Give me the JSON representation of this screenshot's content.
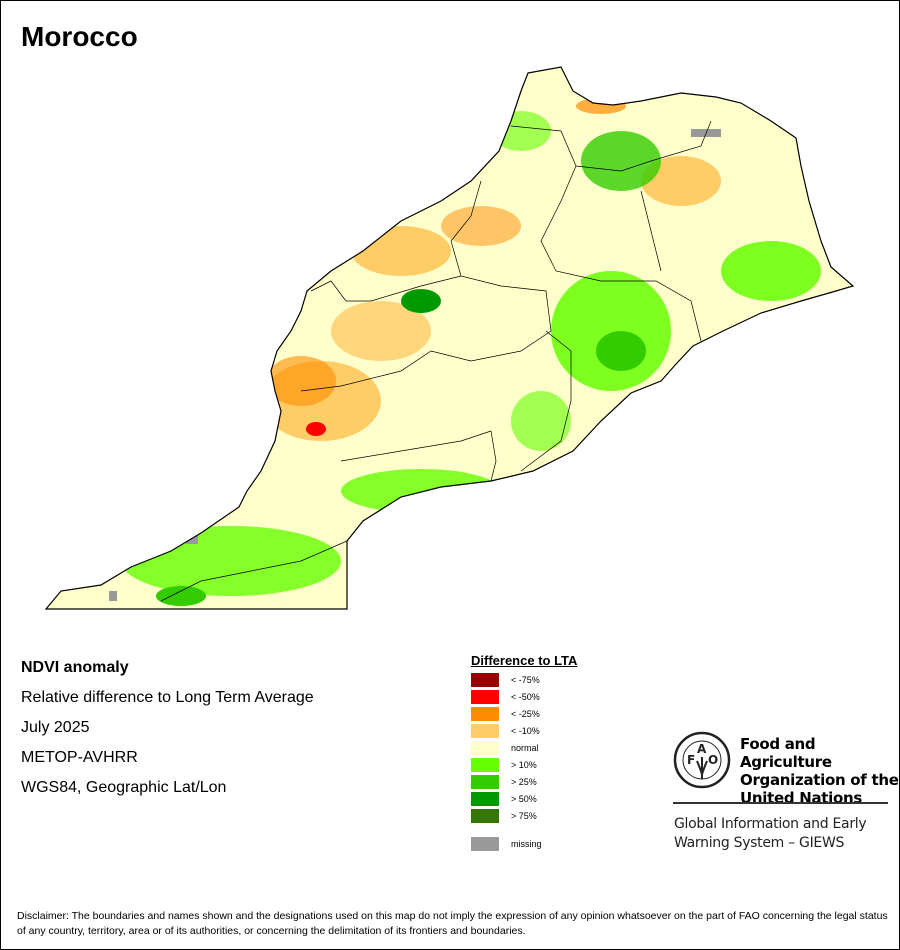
{
  "title": "Morocco",
  "info": {
    "product": "NDVI anomaly",
    "description": "Relative difference to Long Term Average",
    "period": "July 2025",
    "sensor": "METOP-AVHRR",
    "projection": "WGS84, Geographic Lat/Lon"
  },
  "legend": {
    "title": "Difference to LTA",
    "items": [
      {
        "label": "< -75%",
        "color": "#990000"
      },
      {
        "label": "< -50%",
        "color": "#ff0000"
      },
      {
        "label": "< -25%",
        "color": "#ff8c00"
      },
      {
        "label": "< -10%",
        "color": "#ffcc66"
      },
      {
        "label": "normal",
        "color": "#ffffcc"
      },
      {
        "label": "> 10%",
        "color": "#66ff00"
      },
      {
        "label": "> 25%",
        "color": "#33cc00"
      },
      {
        "label": "> 50%",
        "color": "#009900"
      },
      {
        "label": "> 75%",
        "color": "#337700"
      },
      {
        "label": "missing",
        "color": "#999999"
      }
    ]
  },
  "fao": {
    "logo_letters": "FAO FIAT PANIS",
    "name": "Food and Agriculture Organization of the United Nations",
    "giews": "Global Information and Early Warning System – GIEWS"
  },
  "disclaimer": "Disclaimer: The boundaries and names shown and the designations used on this map do not imply the expression of any opinion whatsoever on the part of FAO concerning the legal status of any country, territory, area or of its authorities, or concerning the delimitation of its frontiers and boundaries."
}
